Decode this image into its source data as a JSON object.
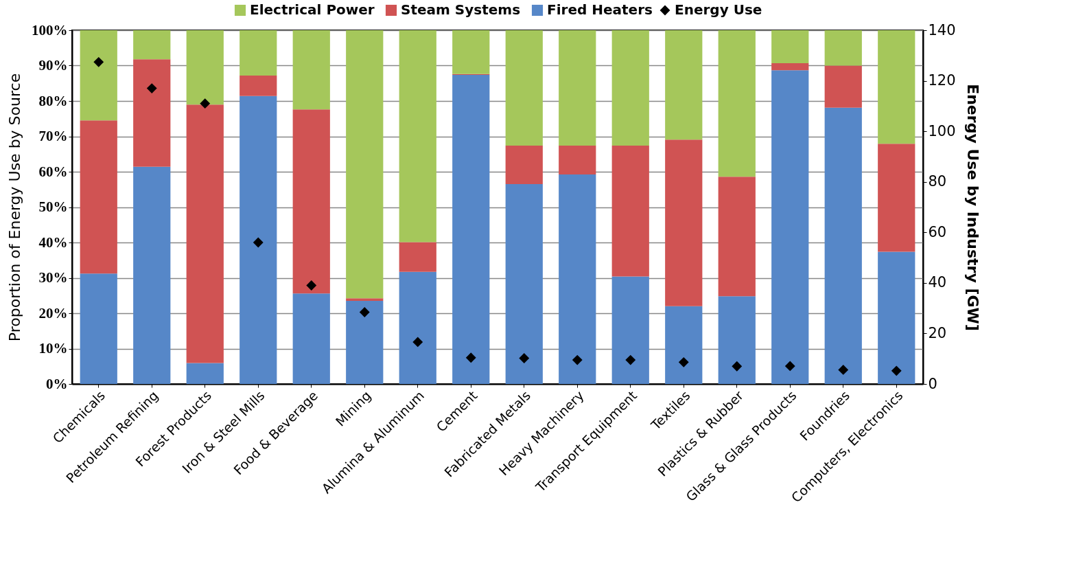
{
  "chart_data": {
    "type": "bar",
    "stacked": true,
    "ylabel": "Proportion of Energy Use by Source",
    "y2label": "Energy Use by Industry [GW]",
    "categories": [
      "Chemicals",
      "Petroleum Refining",
      "Forest Products",
      "Iron & Steel Mills",
      "Food & Beverage",
      "Mining",
      "Alumina & Aluminum",
      "Cement",
      "Fabricated Metals",
      "Heavy Machinery",
      "Transport Equipment",
      "Textiles",
      "Plastics & Rubber",
      "Glass & Glass Products",
      "Foundries",
      "Computers, Electronics"
    ],
    "series": [
      {
        "name": "Fired Heaters",
        "color": "#5687c8",
        "values": [
          31.2,
          61.4,
          5.9,
          81.4,
          25.6,
          23.5,
          31.7,
          87.4,
          56.5,
          59.2,
          30.4,
          22.0,
          24.8,
          88.7,
          78.1,
          37.4
        ]
      },
      {
        "name": "Steam Systems",
        "color": "#d05353",
        "values": [
          43.3,
          30.4,
          73.1,
          5.8,
          52.0,
          0.7,
          8.4,
          0.2,
          10.9,
          8.2,
          37.0,
          47.1,
          33.8,
          2.0,
          11.9,
          30.5
        ]
      },
      {
        "name": "Electrical Power",
        "color": "#a5c75b",
        "values": [
          25.5,
          8.2,
          21.0,
          12.8,
          22.4,
          75.8,
          59.9,
          12.4,
          32.6,
          32.6,
          32.6,
          30.9,
          41.4,
          9.3,
          10.0,
          32.1
        ]
      },
      {
        "name": "Energy Use",
        "type": "scatter",
        "axis": "y2",
        "marker": "diamond",
        "color": "#000000",
        "values": [
          127.4,
          117,
          111,
          56,
          39,
          28.4,
          16.6,
          10.4,
          10.2,
          9.5,
          9.5,
          8.6,
          7.0,
          7.1,
          5.6,
          5.2
        ]
      }
    ],
    "ylim": [
      0,
      100
    ],
    "yticks": [
      {
        "value": 0,
        "label": "0%"
      },
      {
        "value": 10,
        "label": "10%"
      },
      {
        "value": 20,
        "label": "20%"
      },
      {
        "value": 30,
        "label": "30%"
      },
      {
        "value": 40,
        "label": "40%"
      },
      {
        "value": 50,
        "label": "50%"
      },
      {
        "value": 60,
        "label": "60%"
      },
      {
        "value": 70,
        "label": "70%"
      },
      {
        "value": 80,
        "label": "80%"
      },
      {
        "value": 90,
        "label": "90%"
      },
      {
        "value": 100,
        "label": "100%"
      }
    ],
    "y2lim": [
      0,
      140
    ],
    "y2ticks": [
      0,
      20,
      40,
      60,
      80,
      100,
      120,
      140
    ],
    "grid": "y",
    "legend": "top"
  }
}
